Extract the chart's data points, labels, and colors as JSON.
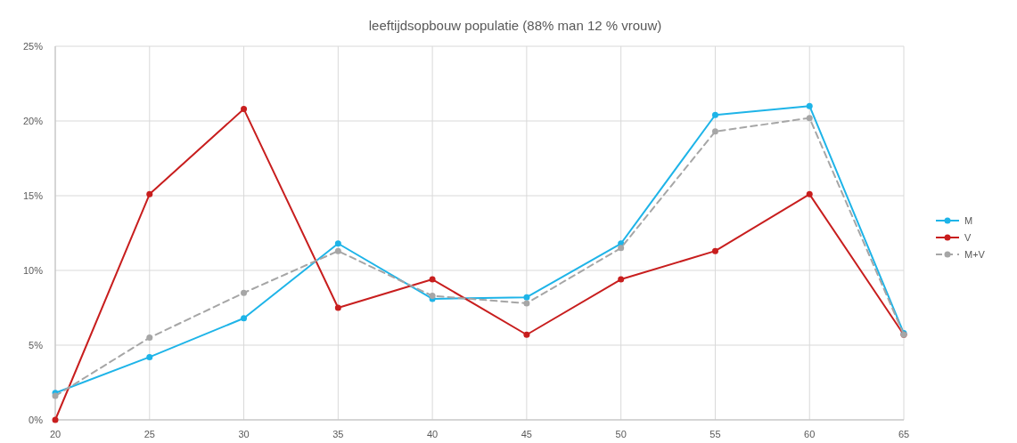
{
  "chart_data": {
    "type": "line",
    "title": "leeftijdsopbouw  populatie  (88% man 12 % vrouw)",
    "x": [
      20,
      25,
      30,
      35,
      40,
      45,
      50,
      55,
      60,
      65
    ],
    "xlim": [
      20,
      65
    ],
    "xticks": [
      20,
      25,
      30,
      35,
      40,
      45,
      50,
      55,
      60,
      65
    ],
    "ylim": [
      0,
      25
    ],
    "yticks": [
      {
        "value": 0,
        "label": "0%"
      },
      {
        "value": 5,
        "label": "5%"
      },
      {
        "value": 10,
        "label": "10%"
      },
      {
        "value": 15,
        "label": "15%"
      },
      {
        "value": 20,
        "label": "20%"
      },
      {
        "value": 25,
        "label": "25%"
      }
    ],
    "grid": true,
    "legend": "right",
    "marker": "circle",
    "series": [
      {
        "name": "M",
        "color": "#1eb4e8",
        "line_style": "solid",
        "values": [
          1.8,
          4.2,
          6.8,
          11.8,
          8.1,
          8.2,
          11.8,
          20.4,
          21.0,
          5.8
        ]
      },
      {
        "name": "V",
        "color": "#c81e1e",
        "line_style": "solid",
        "values": [
          0,
          15.1,
          20.8,
          7.5,
          9.4,
          5.7,
          9.4,
          11.3,
          15.1,
          5.7
        ]
      },
      {
        "name": "M+V",
        "color": "#a6a6a6",
        "line_style": "dashed",
        "values": [
          1.6,
          5.5,
          8.5,
          11.3,
          8.3,
          7.8,
          11.5,
          19.3,
          20.2,
          5.7
        ]
      }
    ]
  }
}
